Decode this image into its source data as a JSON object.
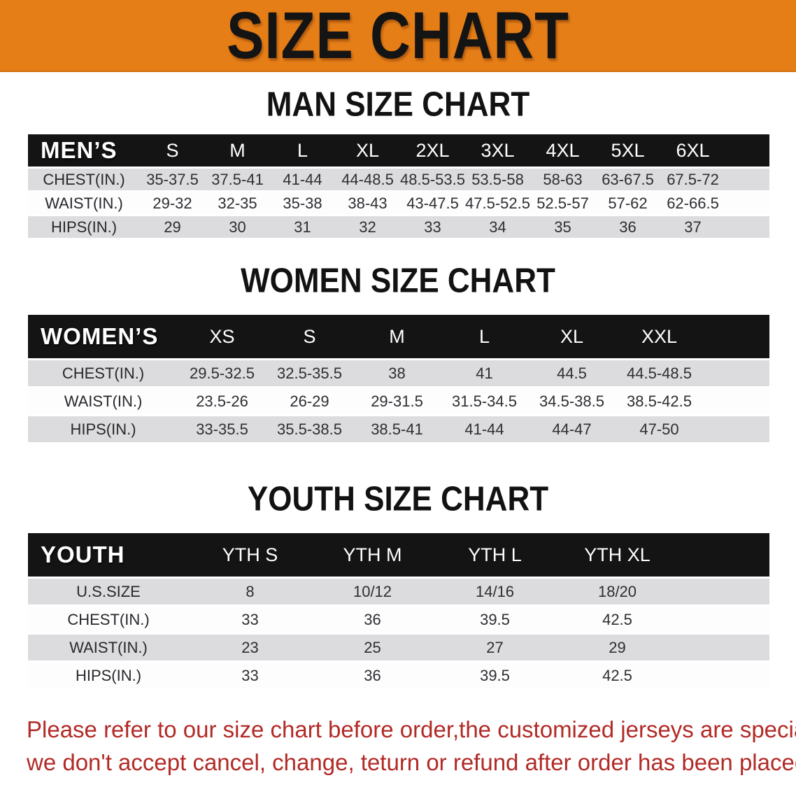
{
  "banner": {
    "title": "SIZE CHART",
    "bg_color": "#E67E17"
  },
  "headings": {
    "man": "MAN SIZE CHART",
    "women": "WOMEN SIZE CHART",
    "youth": "YOUTH SIZE CHART"
  },
  "tables": {
    "men": {
      "header_label": "MEN’S",
      "columns": [
        "S",
        "M",
        "L",
        "XL",
        "2XL",
        "3XL",
        "4XL",
        "5XL",
        "6XL"
      ],
      "rows": [
        {
          "label": "CHEST(IN.)",
          "values": [
            "35-37.5",
            "37.5-41",
            "41-44",
            "44-48.5",
            "48.5-53.5",
            "53.5-58",
            "58-63",
            "63-67.5",
            "67.5-72"
          ]
        },
        {
          "label": "WAIST(IN.)",
          "values": [
            "29-32",
            "32-35",
            "35-38",
            "38-43",
            "43-47.5",
            "47.5-52.5",
            "52.5-57",
            "57-62",
            "62-66.5"
          ]
        },
        {
          "label": "HIPS(IN.)",
          "values": [
            "29",
            "30",
            "31",
            "32",
            "33",
            "34",
            "35",
            "36",
            "37"
          ]
        }
      ]
    },
    "women": {
      "header_label": "WOMEN’S",
      "columns": [
        "XS",
        "S",
        "M",
        "L",
        "XL",
        "XXL"
      ],
      "rows": [
        {
          "label": "CHEST(IN.)",
          "values": [
            "29.5-32.5",
            "32.5-35.5",
            "38",
            "41",
            "44.5",
            "44.5-48.5"
          ]
        },
        {
          "label": "WAIST(IN.)",
          "values": [
            "23.5-26",
            "26-29",
            "29-31.5",
            "31.5-34.5",
            "34.5-38.5",
            "38.5-42.5"
          ]
        },
        {
          "label": "HIPS(IN.)",
          "values": [
            "33-35.5",
            "35.5-38.5",
            "38.5-41",
            "41-44",
            "44-47",
            "47-50"
          ]
        }
      ]
    },
    "youth": {
      "header_label": "YOUTH",
      "columns": [
        "YTH S",
        "YTH M",
        "YTH L",
        "YTH XL"
      ],
      "rows": [
        {
          "label": "U.S.SIZE",
          "values": [
            "8",
            "10/12",
            "14/16",
            "18/20"
          ]
        },
        {
          "label": "CHEST(IN.)",
          "values": [
            "33",
            "36",
            "39.5",
            "42.5"
          ]
        },
        {
          "label": "WAIST(IN.)",
          "values": [
            "23",
            "25",
            "27",
            "29"
          ]
        },
        {
          "label": "HIPS(IN.)",
          "values": [
            "33",
            "36",
            "39.5",
            "42.5"
          ]
        }
      ]
    }
  },
  "disclaimer": {
    "line1": "Please refer to our size chart before order,the customized jerseys are special products,",
    "line2": "we don't accept cancel, change, teturn or refund after order has been placed!"
  },
  "colors": {
    "banner_orange": "#E67E17",
    "header_black": "#141414",
    "row_gray": "#DCDCDE",
    "disclaimer_red": "#B22A26"
  }
}
